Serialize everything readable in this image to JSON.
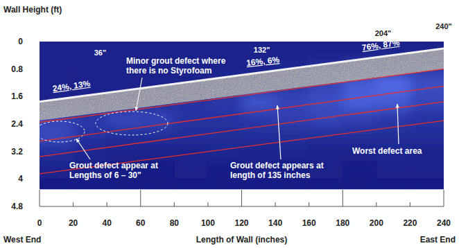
{
  "chart_data": {
    "type": "heatmap",
    "x_label": "Length of Wall (inches)",
    "y_label": "Wall Height (ft)",
    "xlim": [
      0,
      240
    ],
    "xticks": [
      0,
      20,
      40,
      60,
      80,
      100,
      120,
      140,
      160,
      180,
      200,
      220,
      240
    ],
    "ylim": [
      0,
      4.8
    ],
    "yticks": [
      0,
      0.8,
      1.6,
      2.4,
      3.2,
      4,
      4.8
    ],
    "x_edges": [
      0,
      20,
      40,
      60,
      80,
      100,
      120,
      140,
      160,
      180,
      200,
      220,
      240
    ],
    "y_edges": [
      0,
      0.5,
      1,
      1.5,
      2,
      2.5,
      3,
      3.5,
      4,
      4.3
    ],
    "cells": [
      [
        0.2,
        0.2,
        0.2,
        0.2,
        0.2,
        0.2,
        0.2,
        0.2,
        0.2,
        0.2,
        0.2,
        0.2
      ],
      [
        0.2,
        0.2,
        0.2,
        0.2,
        0.2,
        0.2,
        0.2,
        0.25,
        0.3,
        0.35,
        0.4,
        0.4
      ],
      [
        0.2,
        0.2,
        0.2,
        0.2,
        0.2,
        0.3,
        0.35,
        0.4,
        0.5,
        0.7,
        0.85,
        0.6
      ],
      [
        0.2,
        0.2,
        0.2,
        0.3,
        0.35,
        0.4,
        0.65,
        0.5,
        0.6,
        0.75,
        0.7,
        0.5
      ],
      [
        0.5,
        0.4,
        0.55,
        0.5,
        0.35,
        0.35,
        0.4,
        0.45,
        0.5,
        0.45,
        0.4,
        0.35
      ],
      [
        0.55,
        0.35,
        0.3,
        0.3,
        0.3,
        0.3,
        0.3,
        0.3,
        0.3,
        0.3,
        0.3,
        0.3
      ],
      [
        0.3,
        0.25,
        0.2,
        0.2,
        0.2,
        0.25,
        0.2,
        0.25,
        0.2,
        0.2,
        0.25,
        0.2
      ],
      [
        0.2,
        0.2,
        0.15,
        0.15,
        0.2,
        0.15,
        0.2,
        0.15,
        0.2,
        0.15,
        0.2,
        0.2
      ],
      [
        0.15,
        0.15,
        0.15,
        0.15,
        0.15,
        0.15,
        0.15,
        0.15,
        0.15,
        0.15,
        0.15,
        0.15
      ]
    ],
    "band": {
      "x": [
        0,
        240
      ],
      "upper": [
        1.75,
        0.2
      ],
      "lower": [
        2.3,
        0.8
      ]
    },
    "lines": [
      {
        "x": [
          0,
          240
        ],
        "y": [
          2.35,
          0.8
        ],
        "color": "#e8302a"
      },
      {
        "x": [
          0,
          240
        ],
        "y": [
          2.9,
          1.3
        ],
        "color": "#e8302a"
      },
      {
        "x": [
          0,
          240
        ],
        "y": [
          3.35,
          1.75
        ],
        "color": "#e8302a"
      },
      {
        "x": [
          0,
          240
        ],
        "y": [
          3.85,
          2.3
        ],
        "color": "#e8302a"
      }
    ],
    "sections": [
      {
        "x": 36,
        "label": "36\"",
        "detail": "24%, 13%"
      },
      {
        "x": 132,
        "label": "132\"",
        "detail": "16%, 6%"
      },
      {
        "x": 204,
        "label": "204\"",
        "detail": "76%, 87%"
      },
      {
        "x": 240,
        "label": "240\""
      }
    ],
    "annotations": [
      "Minor grout defect where there is no Styrofoam",
      "Grout defect appear at Lengths of 6 – 30\"",
      "Grout defect appears at length of 135 inches",
      "Worst defect area"
    ],
    "end_labels": [
      "West End",
      "East End"
    ]
  }
}
